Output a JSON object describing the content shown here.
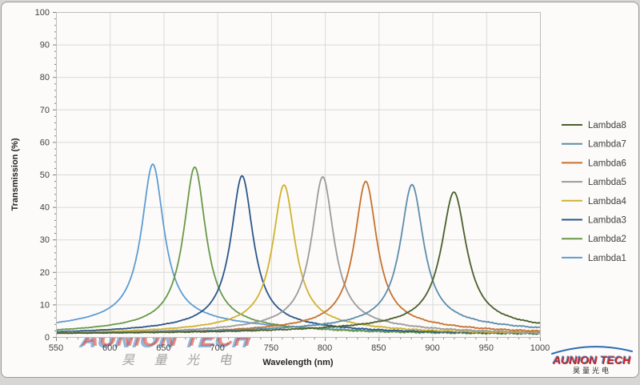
{
  "page": {
    "background": "#d7d6d4",
    "frame_background": "#fcfbf9",
    "frame_border": "#9a9a98"
  },
  "watermark": {
    "text": "AUNION TECH",
    "text_cn": "昊 量 光 电",
    "red": "#d94a43",
    "blue": "#6fa0cf",
    "cn_color": "#a3a3a3"
  },
  "logo": {
    "text": "AUNION TECH",
    "text_cn": "昊量光电",
    "red": "#d2241f",
    "blue": "#2c6bb4"
  },
  "chart_data": {
    "type": "line",
    "title": "",
    "xlabel": "Wavelength (nm)",
    "ylabel": "Transmission (%)",
    "xlim": [
      550,
      1000
    ],
    "ylim": [
      0,
      100
    ],
    "x_major_ticks": [
      550,
      600,
      650,
      700,
      750,
      800,
      850,
      900,
      950,
      1000
    ],
    "x_minor_step": 10,
    "y_major_ticks": [
      0,
      10,
      20,
      30,
      40,
      50,
      60,
      70,
      80,
      90,
      100
    ],
    "y_minor_step": 2,
    "grid": true,
    "gridline_color": "#d9d9d9",
    "plot_border_color": "#bfbdbb",
    "tick_color": "#808080",
    "tick_label_color": "#3f3f3f",
    "axis_title_color": "#262626",
    "legend_position": "right",
    "legend_order": "reversed",
    "curve_model": "lorentzian_peak_plus_pedestal",
    "series": [
      {
        "name": "Lambda1",
        "color": "#5d9cd3",
        "peak_nm": 640,
        "peak_transmission": 53.2,
        "fwhm_nm": 25,
        "baseline_pct": 0.8,
        "pedestal_pct": 4.5,
        "pedestal_width_nm": 110
      },
      {
        "name": "Lambda2",
        "color": "#68994a",
        "peak_nm": 679,
        "peak_transmission": 52.3,
        "fwhm_nm": 25,
        "baseline_pct": 0.7,
        "pedestal_pct": 3.0,
        "pedestal_width_nm": 95
      },
      {
        "name": "Lambda3",
        "color": "#2b5789",
        "peak_nm": 723,
        "peak_transmission": 49.6,
        "fwhm_nm": 25,
        "baseline_pct": 0.7,
        "pedestal_pct": 3.0,
        "pedestal_width_nm": 95
      },
      {
        "name": "Lambda4",
        "color": "#cfb22f",
        "peak_nm": 762,
        "peak_transmission": 46.8,
        "fwhm_nm": 25,
        "baseline_pct": 0.7,
        "pedestal_pct": 3.0,
        "pedestal_width_nm": 95
      },
      {
        "name": "Lambda5",
        "color": "#9b9b9b",
        "peak_nm": 798,
        "peak_transmission": 49.3,
        "fwhm_nm": 25,
        "baseline_pct": 0.7,
        "pedestal_pct": 3.0,
        "pedestal_width_nm": 95
      },
      {
        "name": "Lambda6",
        "color": "#c5722e",
        "peak_nm": 838,
        "peak_transmission": 47.9,
        "fwhm_nm": 25,
        "baseline_pct": 0.8,
        "pedestal_pct": 3.0,
        "pedestal_width_nm": 95
      },
      {
        "name": "Lambda7",
        "color": "#5c8dab",
        "peak_nm": 881,
        "peak_transmission": 46.9,
        "fwhm_nm": 26,
        "baseline_pct": 0.9,
        "pedestal_pct": 3.2,
        "pedestal_width_nm": 110
      },
      {
        "name": "Lambda8",
        "color": "#4b5f2c",
        "peak_nm": 920,
        "peak_transmission": 44.6,
        "fwhm_nm": 28,
        "baseline_pct": 0.8,
        "pedestal_pct": 3.2,
        "pedestal_width_nm": 120
      }
    ]
  }
}
